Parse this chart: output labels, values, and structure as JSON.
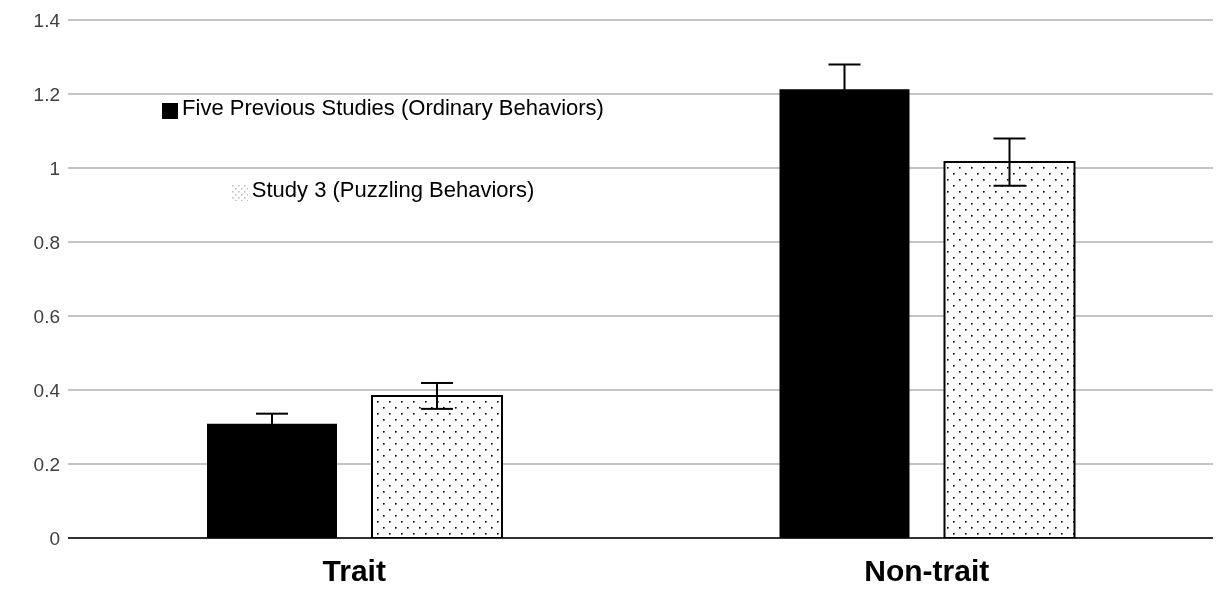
{
  "chart_data": {
    "type": "bar",
    "categories": [
      "Trait",
      "Non-trait"
    ],
    "series": [
      {
        "name": "Five Previous Studies (Ordinary Behaviors)",
        "color": "#000000",
        "values": [
          0.309,
          1.213
        ],
        "errors": [
          0.027,
          0.067
        ]
      },
      {
        "name": "Study 3 (Puzzling Behaviors)",
        "color": "#000000",
        "values": [
          0.384,
          1.016
        ],
        "errors": [
          0.035,
          0.064
        ]
      }
    ],
    "ylim": [
      0,
      1.4
    ],
    "yticks": [
      0,
      0.2,
      0.4,
      0.6,
      0.8,
      1,
      1.2,
      1.4
    ],
    "grid": "y",
    "legend": "top left"
  }
}
